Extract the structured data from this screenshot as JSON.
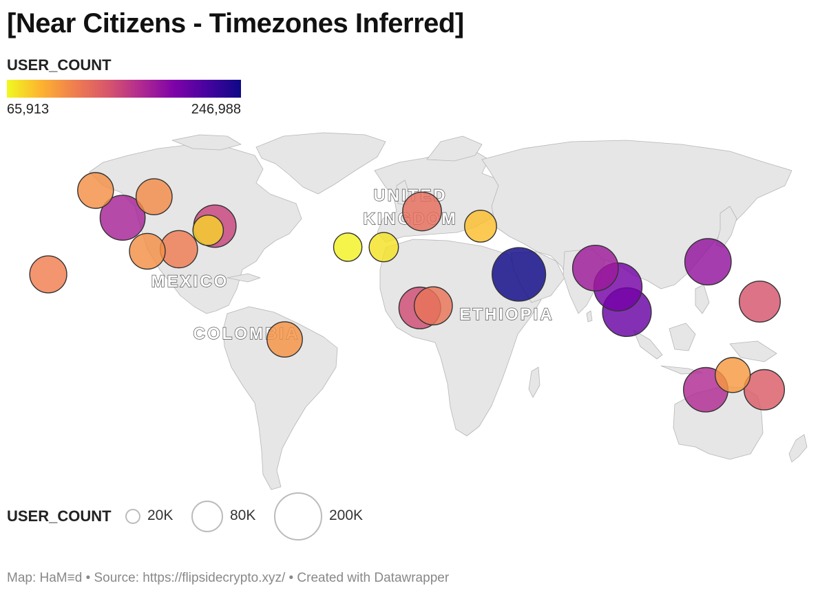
{
  "title": "[Near Citizens - Timezones Inferred]",
  "color_legend": {
    "title": "USER_COUNT",
    "min_label": "65,913",
    "max_label": "246,988",
    "min": 65913,
    "max": 246988,
    "colors": [
      "#f0f921",
      "#fdb42f",
      "#f07f4f",
      "#d8576b",
      "#b12a90",
      "#7e03a8",
      "#46039f",
      "#0d0887"
    ]
  },
  "size_legend": {
    "title": "USER_COUNT",
    "items": [
      {
        "label": "20K",
        "value": 20000
      },
      {
        "label": "80K",
        "value": 80000
      },
      {
        "label": "200K",
        "value": 200000
      }
    ]
  },
  "country_labels": [
    "UNITED",
    "KINGDOM",
    "MEXICO",
    "COLOMBIA",
    "ETHIOPIA"
  ],
  "footer": "Map: HaM≡d • Source: https://flipsidecrypto.xyz/ • Created with Datawrapper",
  "map_data": {
    "type": "symbol-map",
    "color_field": "USER_COUNT",
    "size_field": "USER_COUNT",
    "base_map": "world",
    "symbols": [
      {
        "lon": -134,
        "lat": 60,
        "value": 110000
      },
      {
        "lon": -108,
        "lat": 57,
        "value": 112000
      },
      {
        "lon": -122,
        "lat": 47,
        "value": 175000
      },
      {
        "lon": -81,
        "lat": 43,
        "value": 155000
      },
      {
        "lon": -84,
        "lat": 41,
        "value": 80000
      },
      {
        "lon": -97,
        "lat": 32,
        "value": 120000
      },
      {
        "lon": -111,
        "lat": 31,
        "value": 110000
      },
      {
        "lon": -155,
        "lat": 20,
        "value": 118000
      },
      {
        "lon": -50,
        "lat": -11,
        "value": 108000
      },
      {
        "lon": -22,
        "lat": 33,
        "value": 69000
      },
      {
        "lon": -6,
        "lat": 33,
        "value": 74000
      },
      {
        "lon": 11,
        "lat": 50,
        "value": 130000
      },
      {
        "lon": 37,
        "lat": 43,
        "value": 88000
      },
      {
        "lon": 10,
        "lat": 4,
        "value": 150000
      },
      {
        "lon": 16,
        "lat": 5,
        "value": 125000
      },
      {
        "lon": 54,
        "lat": 20,
        "value": 246988
      },
      {
        "lon": 88,
        "lat": 23,
        "value": 180000
      },
      {
        "lon": 98,
        "lat": 14,
        "value": 200000
      },
      {
        "lon": 102,
        "lat": 2,
        "value": 205000
      },
      {
        "lon": 138,
        "lat": 26,
        "value": 185000
      },
      {
        "lon": 161,
        "lat": 7,
        "value": 145000
      },
      {
        "lon": 149,
        "lat": -28,
        "value": 105000
      },
      {
        "lon": 137,
        "lat": -35,
        "value": 170000
      },
      {
        "lon": 163,
        "lat": -35,
        "value": 140000
      }
    ]
  }
}
